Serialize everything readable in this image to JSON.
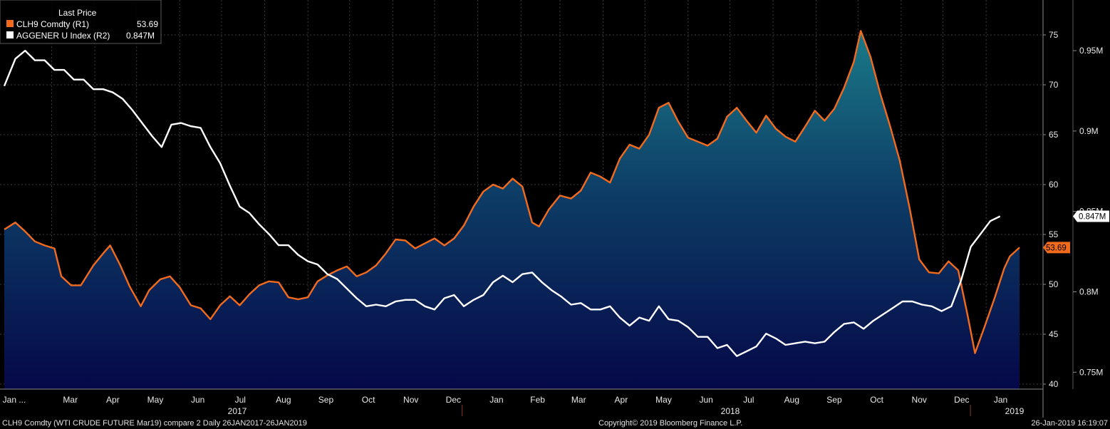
{
  "legend": {
    "title": "Last Price",
    "items": [
      {
        "label": "CLH9 Comdty  (R1)",
        "value": "53.69",
        "color": "#f26b1d"
      },
      {
        "label": "AGGENER U Index  (R2)",
        "value": "0.847M",
        "color": "#ffffff"
      }
    ]
  },
  "chart_data": {
    "type": "line",
    "background": "#000000",
    "grid": true,
    "legend_position": "top-left",
    "x_month_labels": [
      "Jan ...",
      "Mar",
      "Apr",
      "May",
      "Jun",
      "Jul",
      "Aug",
      "Sep",
      "Oct",
      "Nov",
      "Dec",
      "Jan",
      "Feb",
      "Mar",
      "Apr",
      "May",
      "Jun",
      "Jul",
      "Aug",
      "Sep",
      "Oct",
      "Nov",
      "Dec",
      "Jan"
    ],
    "x_year_labels": [
      "2017",
      "2018",
      "2019"
    ],
    "right_axis_1": {
      "ticks": [
        "40",
        "45",
        "50",
        "55",
        "60",
        "65",
        "70",
        "75"
      ],
      "ylim": [
        39.5,
        78.5
      ]
    },
    "right_axis_2": {
      "ticks": [
        "0.75M",
        "0.8M",
        "0.85M",
        "0.9M",
        "0.95M"
      ],
      "ylim": [
        0.7395,
        0.9815
      ]
    },
    "series": [
      {
        "name": "CLH9 Comdty  (R1)",
        "color": "#f26b1d",
        "fill": "area-gradient",
        "last_value": "53.69",
        "points": [
          [
            "2017-01-26",
            55.5
          ],
          [
            "2017-02-03",
            56.2
          ],
          [
            "2017-02-10",
            55.3
          ],
          [
            "2017-02-17",
            54.3
          ],
          [
            "2017-02-24",
            53.9
          ],
          [
            "2017-03-03",
            53.6
          ],
          [
            "2017-03-08",
            50.8
          ],
          [
            "2017-03-15",
            49.9
          ],
          [
            "2017-03-22",
            49.9
          ],
          [
            "2017-03-31",
            51.9
          ],
          [
            "2017-04-07",
            53.1
          ],
          [
            "2017-04-12",
            53.9
          ],
          [
            "2017-04-19",
            52.0
          ],
          [
            "2017-04-26",
            49.8
          ],
          [
            "2017-05-04",
            47.8
          ],
          [
            "2017-05-10",
            49.4
          ],
          [
            "2017-05-18",
            50.5
          ],
          [
            "2017-05-25",
            50.8
          ],
          [
            "2017-06-01",
            49.7
          ],
          [
            "2017-06-09",
            47.9
          ],
          [
            "2017-06-16",
            47.6
          ],
          [
            "2017-06-23",
            46.5
          ],
          [
            "2017-06-30",
            47.9
          ],
          [
            "2017-07-07",
            48.8
          ],
          [
            "2017-07-14",
            47.9
          ],
          [
            "2017-07-21",
            49.0
          ],
          [
            "2017-07-28",
            49.9
          ],
          [
            "2017-08-04",
            50.3
          ],
          [
            "2017-08-11",
            50.2
          ],
          [
            "2017-08-18",
            48.7
          ],
          [
            "2017-08-25",
            48.5
          ],
          [
            "2017-09-01",
            48.7
          ],
          [
            "2017-09-08",
            50.3
          ],
          [
            "2017-09-15",
            50.9
          ],
          [
            "2017-09-22",
            51.4
          ],
          [
            "2017-09-29",
            51.8
          ],
          [
            "2017-10-06",
            50.8
          ],
          [
            "2017-10-13",
            51.2
          ],
          [
            "2017-10-20",
            51.9
          ],
          [
            "2017-10-27",
            53.1
          ],
          [
            "2017-11-03",
            54.5
          ],
          [
            "2017-11-10",
            54.4
          ],
          [
            "2017-11-17",
            53.6
          ],
          [
            "2017-11-24",
            54.1
          ],
          [
            "2017-12-01",
            54.6
          ],
          [
            "2017-12-08",
            53.9
          ],
          [
            "2017-12-15",
            54.6
          ],
          [
            "2017-12-22",
            55.9
          ],
          [
            "2017-12-29",
            57.8
          ],
          [
            "2018-01-05",
            59.3
          ],
          [
            "2018-01-12",
            60.0
          ],
          [
            "2018-01-19",
            59.6
          ],
          [
            "2018-01-26",
            60.6
          ],
          [
            "2018-02-02",
            59.8
          ],
          [
            "2018-02-09",
            56.2
          ],
          [
            "2018-02-14",
            55.8
          ],
          [
            "2018-02-21",
            57.5
          ],
          [
            "2018-03-01",
            58.9
          ],
          [
            "2018-03-09",
            58.6
          ],
          [
            "2018-03-16",
            59.4
          ],
          [
            "2018-03-23",
            61.2
          ],
          [
            "2018-03-30",
            60.8
          ],
          [
            "2018-04-06",
            60.2
          ],
          [
            "2018-04-13",
            62.6
          ],
          [
            "2018-04-20",
            64.0
          ],
          [
            "2018-04-27",
            63.6
          ],
          [
            "2018-05-04",
            65.0
          ],
          [
            "2018-05-11",
            67.7
          ],
          [
            "2018-05-18",
            68.2
          ],
          [
            "2018-05-25",
            66.3
          ],
          [
            "2018-06-01",
            64.7
          ],
          [
            "2018-06-08",
            64.3
          ],
          [
            "2018-06-15",
            63.9
          ],
          [
            "2018-06-22",
            64.6
          ],
          [
            "2018-06-29",
            66.8
          ],
          [
            "2018-07-06",
            67.7
          ],
          [
            "2018-07-13",
            66.4
          ],
          [
            "2018-07-20",
            65.2
          ],
          [
            "2018-07-27",
            66.9
          ],
          [
            "2018-08-03",
            65.6
          ],
          [
            "2018-08-10",
            64.8
          ],
          [
            "2018-08-17",
            64.3
          ],
          [
            "2018-08-24",
            65.8
          ],
          [
            "2018-08-31",
            67.4
          ],
          [
            "2018-09-07",
            66.4
          ],
          [
            "2018-09-14",
            67.6
          ],
          [
            "2018-09-21",
            69.7
          ],
          [
            "2018-09-28",
            72.3
          ],
          [
            "2018-10-03",
            75.4
          ],
          [
            "2018-10-10",
            72.8
          ],
          [
            "2018-10-17",
            69.1
          ],
          [
            "2018-10-24",
            65.9
          ],
          [
            "2018-10-31",
            62.4
          ],
          [
            "2018-11-07",
            57.7
          ],
          [
            "2018-11-14",
            52.5
          ],
          [
            "2018-11-21",
            51.2
          ],
          [
            "2018-11-28",
            51.1
          ],
          [
            "2018-12-05",
            52.3
          ],
          [
            "2018-12-12",
            51.4
          ],
          [
            "2018-12-19",
            46.7
          ],
          [
            "2018-12-24",
            43.1
          ],
          [
            "2018-12-31",
            45.8
          ],
          [
            "2019-01-07",
            48.6
          ],
          [
            "2019-01-14",
            51.6
          ],
          [
            "2019-01-18",
            52.8
          ],
          [
            "2019-01-25",
            53.69
          ]
        ]
      },
      {
        "name": "AGGENER U Index  (R2)",
        "color": "#ffffff",
        "last_value": "0.847M",
        "points": [
          [
            "2017-01-26",
            0.928
          ],
          [
            "2017-02-03",
            0.945
          ],
          [
            "2017-02-10",
            0.95
          ],
          [
            "2017-02-17",
            0.944
          ],
          [
            "2017-02-24",
            0.944
          ],
          [
            "2017-03-03",
            0.938
          ],
          [
            "2017-03-10",
            0.938
          ],
          [
            "2017-03-17",
            0.932
          ],
          [
            "2017-03-24",
            0.932
          ],
          [
            "2017-03-31",
            0.926
          ],
          [
            "2017-04-07",
            0.926
          ],
          [
            "2017-04-14",
            0.924
          ],
          [
            "2017-04-21",
            0.92
          ],
          [
            "2017-04-28",
            0.913
          ],
          [
            "2017-05-05",
            0.905
          ],
          [
            "2017-05-12",
            0.897
          ],
          [
            "2017-05-19",
            0.89
          ],
          [
            "2017-05-26",
            0.904
          ],
          [
            "2017-06-02",
            0.905
          ],
          [
            "2017-06-09",
            0.903
          ],
          [
            "2017-06-16",
            0.902
          ],
          [
            "2017-06-23",
            0.89
          ],
          [
            "2017-06-30",
            0.88
          ],
          [
            "2017-07-07",
            0.866
          ],
          [
            "2017-07-14",
            0.853
          ],
          [
            "2017-07-21",
            0.849
          ],
          [
            "2017-07-28",
            0.842
          ],
          [
            "2017-08-04",
            0.836
          ],
          [
            "2017-08-11",
            0.829
          ],
          [
            "2017-08-18",
            0.829
          ],
          [
            "2017-08-25",
            0.823
          ],
          [
            "2017-09-01",
            0.819
          ],
          [
            "2017-09-08",
            0.817
          ],
          [
            "2017-09-15",
            0.811
          ],
          [
            "2017-09-22",
            0.808
          ],
          [
            "2017-09-29",
            0.802
          ],
          [
            "2017-10-06",
            0.796
          ],
          [
            "2017-10-13",
            0.791
          ],
          [
            "2017-10-20",
            0.792
          ],
          [
            "2017-10-27",
            0.791
          ],
          [
            "2017-11-03",
            0.794
          ],
          [
            "2017-11-10",
            0.795
          ],
          [
            "2017-11-17",
            0.795
          ],
          [
            "2017-11-24",
            0.791
          ],
          [
            "2017-12-01",
            0.789
          ],
          [
            "2017-12-08",
            0.796
          ],
          [
            "2017-12-15",
            0.798
          ],
          [
            "2017-12-22",
            0.791
          ],
          [
            "2017-12-29",
            0.795
          ],
          [
            "2018-01-05",
            0.798
          ],
          [
            "2018-01-12",
            0.806
          ],
          [
            "2018-01-19",
            0.81
          ],
          [
            "2018-01-26",
            0.806
          ],
          [
            "2018-02-02",
            0.811
          ],
          [
            "2018-02-09",
            0.812
          ],
          [
            "2018-02-16",
            0.806
          ],
          [
            "2018-02-23",
            0.801
          ],
          [
            "2018-03-02",
            0.797
          ],
          [
            "2018-03-09",
            0.792
          ],
          [
            "2018-03-16",
            0.793
          ],
          [
            "2018-03-23",
            0.789
          ],
          [
            "2018-03-30",
            0.789
          ],
          [
            "2018-04-06",
            0.791
          ],
          [
            "2018-04-13",
            0.784
          ],
          [
            "2018-04-20",
            0.779
          ],
          [
            "2018-04-27",
            0.784
          ],
          [
            "2018-05-04",
            0.782
          ],
          [
            "2018-05-11",
            0.791
          ],
          [
            "2018-05-18",
            0.783
          ],
          [
            "2018-05-25",
            0.782
          ],
          [
            "2018-06-01",
            0.778
          ],
          [
            "2018-06-08",
            0.772
          ],
          [
            "2018-06-15",
            0.772
          ],
          [
            "2018-06-22",
            0.765
          ],
          [
            "2018-06-29",
            0.767
          ],
          [
            "2018-07-06",
            0.76
          ],
          [
            "2018-07-13",
            0.763
          ],
          [
            "2018-07-20",
            0.766
          ],
          [
            "2018-07-27",
            0.774
          ],
          [
            "2018-08-03",
            0.771
          ],
          [
            "2018-08-10",
            0.767
          ],
          [
            "2018-08-17",
            0.768
          ],
          [
            "2018-08-24",
            0.769
          ],
          [
            "2018-08-31",
            0.768
          ],
          [
            "2018-09-07",
            0.769
          ],
          [
            "2018-09-14",
            0.775
          ],
          [
            "2018-09-21",
            0.78
          ],
          [
            "2018-09-28",
            0.781
          ],
          [
            "2018-10-05",
            0.777
          ],
          [
            "2018-10-12",
            0.782
          ],
          [
            "2018-10-19",
            0.786
          ],
          [
            "2018-10-26",
            0.79
          ],
          [
            "2018-11-02",
            0.794
          ],
          [
            "2018-11-09",
            0.794
          ],
          [
            "2018-11-16",
            0.792
          ],
          [
            "2018-11-23",
            0.791
          ],
          [
            "2018-11-30",
            0.788
          ],
          [
            "2018-12-07",
            0.791
          ],
          [
            "2018-12-14",
            0.807
          ],
          [
            "2018-12-21",
            0.828
          ],
          [
            "2018-12-28",
            0.836
          ],
          [
            "2019-01-04",
            0.844
          ],
          [
            "2019-01-11",
            0.847
          ]
        ]
      }
    ]
  },
  "footer": {
    "left": "CLH9 Comdty (WTI CRUDE FUTURE  Mar19) compare 2  Daily 26JAN2017-26JAN2019",
    "center": "Copyright© 2019 Bloomberg Finance L.P.",
    "right": "26-Jan-2019 16:19:07"
  }
}
